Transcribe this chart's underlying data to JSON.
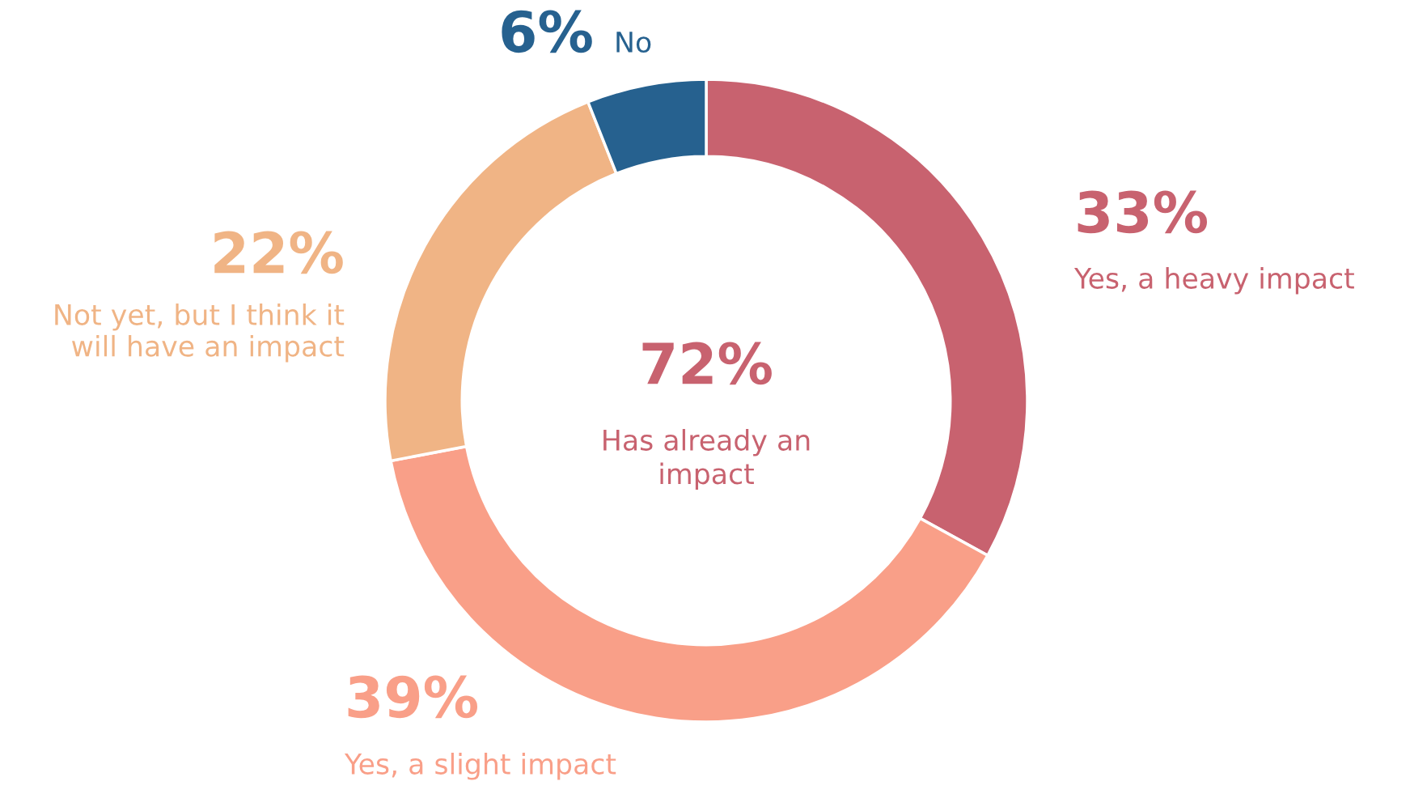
{
  "chart_data": {
    "type": "donut",
    "categories": [
      "Yes, a heavy impact",
      "Yes, a slight impact",
      "Not yet, but I think it\nwill have an impact",
      "No"
    ],
    "values": [
      33,
      39,
      22,
      6
    ],
    "colors": [
      "#c8626f",
      "#f99f88",
      "#f0b485",
      "#26618f"
    ],
    "value_labels": [
      "33%",
      "39%",
      "22%",
      "6%"
    ],
    "legend": false,
    "annotations": [
      "72%",
      "Has already an\nimpact"
    ]
  }
}
